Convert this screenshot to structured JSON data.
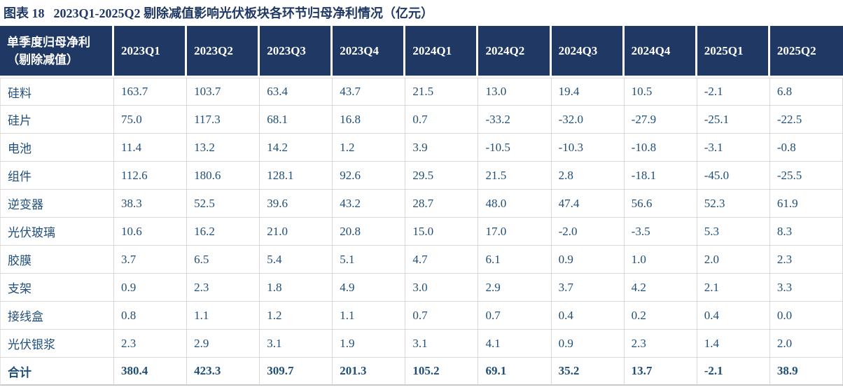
{
  "figure": {
    "label": "图表 18",
    "caption": "2023Q1-2025Q2 剔除减值影响光伏板块各环节归母净利情况（亿元）"
  },
  "table": {
    "corner_header": {
      "line1": "单季度归母净利",
      "line2": "（剔除减值）"
    },
    "columns": [
      "2023Q1",
      "2023Q2",
      "2023Q3",
      "2023Q4",
      "2024Q1",
      "2024Q2",
      "2024Q3",
      "2024Q4",
      "2025Q1",
      "2025Q2"
    ],
    "rows": [
      {
        "label": "硅料",
        "bold": false,
        "values": [
          "163.7",
          "103.7",
          "63.4",
          "43.7",
          "21.5",
          "13.0",
          "19.4",
          "10.5",
          "-2.1",
          "6.8"
        ]
      },
      {
        "label": "硅片",
        "bold": false,
        "values": [
          "75.0",
          "117.3",
          "68.1",
          "16.8",
          "0.7",
          "-33.2",
          "-32.0",
          "-27.9",
          "-25.1",
          "-22.5"
        ]
      },
      {
        "label": "电池",
        "bold": false,
        "values": [
          "11.4",
          "13.2",
          "14.2",
          "1.2",
          "3.9",
          "-10.5",
          "-10.3",
          "-10.8",
          "-3.1",
          "-0.8"
        ]
      },
      {
        "label": "组件",
        "bold": false,
        "values": [
          "112.6",
          "180.6",
          "128.1",
          "92.6",
          "29.5",
          "21.5",
          "2.8",
          "-18.1",
          "-45.0",
          "-25.5"
        ]
      },
      {
        "label": "逆变器",
        "bold": false,
        "values": [
          "38.3",
          "52.5",
          "39.6",
          "43.2",
          "28.7",
          "48.0",
          "47.4",
          "56.6",
          "52.3",
          "61.9"
        ]
      },
      {
        "label": "光伏玻璃",
        "bold": false,
        "values": [
          "10.6",
          "16.2",
          "21.0",
          "20.8",
          "15.0",
          "17.0",
          "-2.0",
          "-3.5",
          "5.3",
          "8.3"
        ]
      },
      {
        "label": "胶膜",
        "bold": false,
        "values": [
          "3.7",
          "6.5",
          "5.4",
          "5.1",
          "4.7",
          "6.1",
          "0.9",
          "1.0",
          "2.0",
          "2.3"
        ]
      },
      {
        "label": "支架",
        "bold": false,
        "values": [
          "0.9",
          "2.3",
          "1.8",
          "4.9",
          "3.0",
          "2.9",
          "3.7",
          "4.2",
          "2.1",
          "3.3"
        ]
      },
      {
        "label": "接线盒",
        "bold": false,
        "values": [
          "0.8",
          "1.1",
          "1.2",
          "1.1",
          "0.7",
          "0.7",
          "0.4",
          "0.2",
          "0.4",
          "0.0"
        ]
      },
      {
        "label": "光伏银浆",
        "bold": false,
        "values": [
          "2.3",
          "2.9",
          "3.1",
          "1.9",
          "3.1",
          "4.1",
          "0.9",
          "2.3",
          "1.4",
          "2.0"
        ]
      },
      {
        "label": "合计",
        "bold": true,
        "values": [
          "380.4",
          "423.3",
          "309.7",
          "201.3",
          "105.2",
          "69.1",
          "35.2",
          "13.7",
          "-2.1",
          "38.9"
        ]
      }
    ]
  },
  "colors": {
    "header_bg": "#1F3864",
    "header_text": "#FFFFFF",
    "title_text": "#1F3864",
    "cell_text": "#1F4E79",
    "grid_line": "#D9D9D9"
  },
  "chart_data": {
    "type": "table",
    "title": "图表 18 2023Q1-2025Q2 剔除减值影响光伏板块各环节归母净利情况（亿元）",
    "unit": "亿元",
    "row_header": "单季度归母净利（剔除减值）",
    "categories": [
      "2023Q1",
      "2023Q2",
      "2023Q3",
      "2023Q4",
      "2024Q1",
      "2024Q2",
      "2024Q3",
      "2024Q4",
      "2025Q1",
      "2025Q2"
    ],
    "series": [
      {
        "name": "硅料",
        "values": [
          163.7,
          103.7,
          63.4,
          43.7,
          21.5,
          13.0,
          19.4,
          10.5,
          -2.1,
          6.8
        ]
      },
      {
        "name": "硅片",
        "values": [
          75.0,
          117.3,
          68.1,
          16.8,
          0.7,
          -33.2,
          -32.0,
          -27.9,
          -25.1,
          -22.5
        ]
      },
      {
        "name": "电池",
        "values": [
          11.4,
          13.2,
          14.2,
          1.2,
          3.9,
          -10.5,
          -10.3,
          -10.8,
          -3.1,
          -0.8
        ]
      },
      {
        "name": "组件",
        "values": [
          112.6,
          180.6,
          128.1,
          92.6,
          29.5,
          21.5,
          2.8,
          -18.1,
          -45.0,
          -25.5
        ]
      },
      {
        "name": "逆变器",
        "values": [
          38.3,
          52.5,
          39.6,
          43.2,
          28.7,
          48.0,
          47.4,
          56.6,
          52.3,
          61.9
        ]
      },
      {
        "name": "光伏玻璃",
        "values": [
          10.6,
          16.2,
          21.0,
          20.8,
          15.0,
          17.0,
          -2.0,
          -3.5,
          5.3,
          8.3
        ]
      },
      {
        "name": "胶膜",
        "values": [
          3.7,
          6.5,
          5.4,
          5.1,
          4.7,
          6.1,
          0.9,
          1.0,
          2.0,
          2.3
        ]
      },
      {
        "name": "支架",
        "values": [
          0.9,
          2.3,
          1.8,
          4.9,
          3.0,
          2.9,
          3.7,
          4.2,
          2.1,
          3.3
        ]
      },
      {
        "name": "接线盒",
        "values": [
          0.8,
          1.1,
          1.2,
          1.1,
          0.7,
          0.7,
          0.4,
          0.2,
          0.4,
          0.0
        ]
      },
      {
        "name": "光伏银浆",
        "values": [
          2.3,
          2.9,
          3.1,
          1.9,
          3.1,
          4.1,
          0.9,
          2.3,
          1.4,
          2.0
        ]
      },
      {
        "name": "合计",
        "values": [
          380.4,
          423.3,
          309.7,
          201.3,
          105.2,
          69.1,
          35.2,
          13.7,
          -2.1,
          38.9
        ]
      }
    ]
  }
}
